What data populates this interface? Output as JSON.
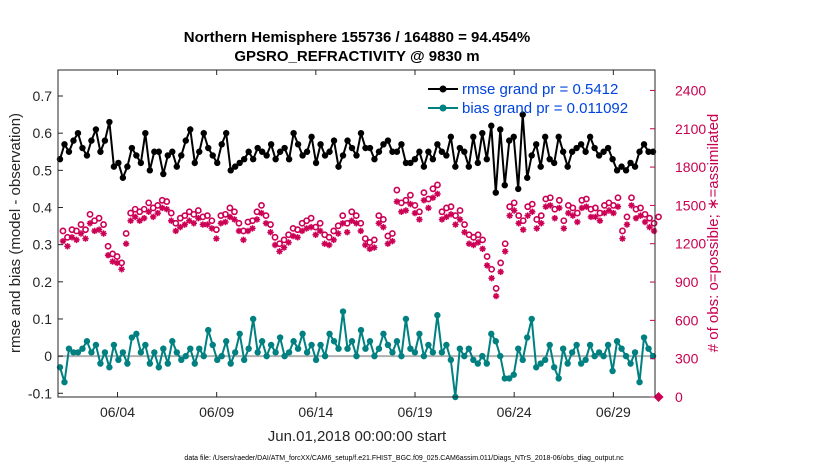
{
  "chart_data": {
    "type": "line",
    "title_line1": "Northern Hemisphere 155736 / 164880 = 94.454%",
    "title_line2": "GPSRO_REFRACTIVITY @ 9830 m",
    "xlabel": "Jun.01,2018 00:00:00 start",
    "ylabel": "rmse and bias (model - observation)",
    "ylabel_right": "# of obs: o=possible; ∗=assimilated",
    "xlim": [
      1,
      31.1
    ],
    "ylim": [
      -0.11,
      0.77
    ],
    "ylim_right": [
      0,
      2560
    ],
    "x_ticks": [
      {
        "x": 4,
        "label": "06/04"
      },
      {
        "x": 9,
        "label": "06/09"
      },
      {
        "x": 14,
        "label": "06/14"
      },
      {
        "x": 19,
        "label": "06/19"
      },
      {
        "x": 24,
        "label": "06/24"
      },
      {
        "x": 29,
        "label": "06/29"
      }
    ],
    "y_ticks": [
      "-0.1",
      "0",
      "0.1",
      "0.2",
      "0.3",
      "0.4",
      "0.5",
      "0.6",
      "0.7"
    ],
    "y_ticks_right": [
      "0",
      "300",
      "600",
      "900",
      "1200",
      "1500",
      "1800",
      "2100",
      "2400"
    ],
    "colors": {
      "rmse": "#000000",
      "bias": "#008080",
      "count": "#cc0055",
      "zero_line": "#b0b0b0",
      "legend_text": "#0044dd"
    },
    "series": [
      {
        "name": "rmse grand pr = 0.5412",
        "color": "#000000",
        "values": [
          0.53,
          0.57,
          0.55,
          0.58,
          0.6,
          0.56,
          0.54,
          0.58,
          0.61,
          0.55,
          0.58,
          0.63,
          0.51,
          0.52,
          0.48,
          0.51,
          0.56,
          0.54,
          0.52,
          0.6,
          0.5,
          0.55,
          0.55,
          0.49,
          0.54,
          0.55,
          0.51,
          0.54,
          0.58,
          0.61,
          0.52,
          0.55,
          0.6,
          0.56,
          0.54,
          0.52,
          0.57,
          0.6,
          0.5,
          0.51,
          0.52,
          0.53,
          0.55,
          0.53,
          0.56,
          0.55,
          0.54,
          0.57,
          0.53,
          0.55,
          0.56,
          0.53,
          0.6,
          0.57,
          0.54,
          0.55,
          0.59,
          0.52,
          0.57,
          0.54,
          0.55,
          0.58,
          0.51,
          0.54,
          0.58,
          0.56,
          0.54,
          0.6,
          0.56,
          0.56,
          0.53,
          0.55,
          0.57,
          0.58,
          0.55,
          0.55,
          0.57,
          0.52,
          0.52,
          0.53,
          0.55,
          0.51,
          0.55,
          0.53,
          0.57,
          0.55,
          0.54,
          0.59,
          0.51,
          0.56,
          0.55,
          0.51,
          0.59,
          0.52,
          0.6,
          0.53,
          0.62,
          0.44,
          0.61,
          0.46,
          0.58,
          0.59,
          0.45,
          0.65,
          0.48,
          0.54,
          0.57,
          0.51,
          0.59,
          0.53,
          0.52,
          0.59,
          0.55,
          0.51,
          0.55,
          0.56,
          0.57,
          0.55,
          0.59,
          0.56,
          0.54,
          0.55,
          0.56,
          0.53,
          0.5,
          0.51,
          0.5,
          0.52,
          0.51,
          0.55,
          0.57,
          0.55,
          0.55
        ]
      },
      {
        "name": "bias grand pr = 0.011092",
        "color": "#008080",
        "values": [
          -0.03,
          -0.07,
          0.02,
          0.01,
          0.01,
          0.02,
          0.04,
          0.01,
          0.03,
          -0.02,
          0.01,
          -0.03,
          0.03,
          -0.01,
          0.01,
          -0.02,
          0.05,
          0.06,
          0.01,
          0.03,
          -0.02,
          0.01,
          -0.03,
          0.02,
          -0.02,
          0.04,
          0.01,
          -0.01,
          0.0,
          0.02,
          -0.02,
          0.02,
          0.0,
          0.07,
          0.03,
          -0.01,
          0.0,
          0.04,
          -0.02,
          0.01,
          0.06,
          -0.01,
          0.02,
          0.1,
          0.01,
          0.04,
          0.0,
          0.03,
          0.01,
          0.05,
          0.0,
          0.01,
          0.04,
          0.02,
          0.06,
          0.01,
          0.03,
          -0.01,
          0.03,
          0.0,
          0.06,
          0.04,
          0.02,
          0.12,
          0.02,
          0.04,
          0.0,
          0.07,
          0.02,
          0.04,
          0.0,
          0.02,
          0.06,
          0.03,
          0.01,
          0.04,
          0.0,
          0.1,
          0.02,
          0.01,
          0.06,
          0.0,
          0.03,
          0.01,
          0.11,
          0.01,
          0.03,
          -0.01,
          -0.11,
          0.02,
          0.0,
          0.02,
          -0.01,
          -0.02,
          0.0,
          -0.02,
          0.06,
          0.04,
          0.0,
          -0.06,
          -0.06,
          -0.05,
          0.02,
          -0.01,
          0.05,
          0.1,
          -0.03,
          -0.02,
          -0.01,
          0.03,
          -0.03,
          -0.06,
          0.02,
          -0.02,
          0.01,
          0.03,
          -0.02,
          -0.01,
          0.03,
          0.0,
          0.01,
          0.0,
          0.03,
          -0.04,
          0.04,
          0.02,
          0.0,
          -0.02,
          0.01,
          -0.07,
          0.05,
          0.02,
          0.0
        ]
      },
      {
        "name": "# of obs possible",
        "color": "#cc0055",
        "values": [
          1300,
          1250,
          1310,
          1300,
          1350,
          1310,
          1430,
          1380,
          1400,
          1350,
          1180,
          1120,
          1100,
          1050,
          1280,
          1440,
          1470,
          1450,
          1470,
          1520,
          1480,
          1500,
          1540,
          1530,
          1440,
          1360,
          1400,
          1420,
          1450,
          1430,
          1460,
          1410,
          1420,
          1380,
          1310,
          1420,
          1430,
          1480,
          1450,
          1360,
          1300,
          1370,
          1380,
          1450,
          1500,
          1420,
          1350,
          1250,
          1200,
          1230,
          1270,
          1320,
          1310,
          1360,
          1380,
          1400,
          1330,
          1360,
          1270,
          1250,
          1300,
          1340,
          1420,
          1360,
          1450,
          1420,
          1360,
          1240,
          1210,
          1230,
          1420,
          1390,
          1260,
          1280,
          1620,
          1520,
          1540,
          1580,
          1500,
          1450,
          1600,
          1550,
          1630,
          1660,
          1450,
          1480,
          1490,
          1420,
          1460,
          1350,
          1270,
          1250,
          1270,
          1230,
          1100,
          1000,
          850,
          1050,
          1200,
          1490,
          1520,
          1420,
          1380,
          1490,
          1510,
          1390,
          1420,
          1550,
          1560,
          1470,
          1540,
          1380,
          1500,
          1480,
          1440,
          1540,
          1550,
          1470,
          1480,
          1440,
          1500,
          1520,
          1500,
          1560,
          1300,
          1410,
          1560,
          1470,
          1480,
          1430,
          1400,
          1360,
          1410
        ]
      },
      {
        "name": "# of obs assimilated",
        "color": "#cc0055",
        "values": [
          1220,
          1180,
          1250,
          1230,
          1280,
          1240,
          1360,
          1300,
          1310,
          1280,
          1110,
          1060,
          1050,
          1000,
          1200,
          1380,
          1410,
          1380,
          1400,
          1450,
          1410,
          1440,
          1480,
          1470,
          1380,
          1300,
          1330,
          1350,
          1380,
          1360,
          1400,
          1350,
          1350,
          1320,
          1240,
          1360,
          1370,
          1410,
          1390,
          1300,
          1230,
          1300,
          1320,
          1390,
          1440,
          1360,
          1290,
          1190,
          1140,
          1170,
          1210,
          1260,
          1250,
          1300,
          1320,
          1330,
          1270,
          1300,
          1200,
          1190,
          1230,
          1280,
          1360,
          1290,
          1380,
          1360,
          1300,
          1190,
          1160,
          1170,
          1360,
          1330,
          1200,
          1220,
          1530,
          1450,
          1460,
          1510,
          1440,
          1390,
          1540,
          1480,
          1560,
          1590,
          1390,
          1410,
          1430,
          1350,
          1390,
          1290,
          1200,
          1190,
          1210,
          1160,
          1030,
          930,
          790,
          980,
          1140,
          1420,
          1460,
          1360,
          1310,
          1420,
          1450,
          1320,
          1360,
          1490,
          1500,
          1400,
          1480,
          1320,
          1440,
          1420,
          1370,
          1480,
          1490,
          1410,
          1410,
          1380,
          1440,
          1460,
          1440,
          1490,
          1240,
          1350,
          1500,
          1400,
          1420,
          1370,
          1330,
          1300,
          0
        ]
      }
    ]
  },
  "footer": "data file: /Users/raeder/DAI/ATM_forcXX/CAM6_setup/f.e21.FHIST_BGC.f09_025.CAM6assim.011/Diags_NTrS_2018-06/obs_diag_output.nc"
}
